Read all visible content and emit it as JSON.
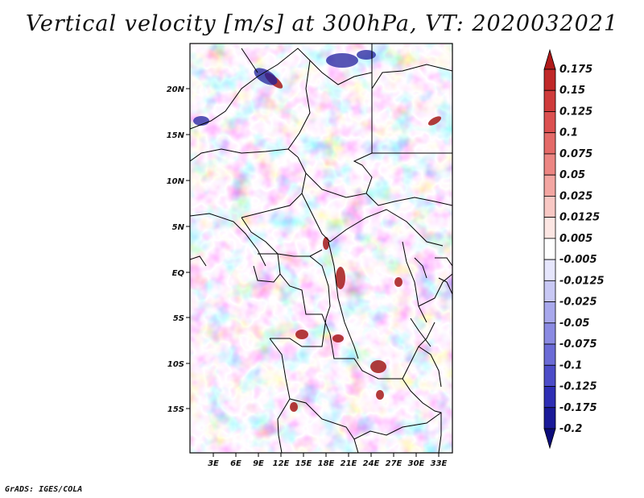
{
  "title": "Vertical velocity [m/s] at 300hPa, VT: 2020032021",
  "footer": "GrADS: IGES/COLA",
  "map": {
    "lon_ticks": [
      "3E",
      "6E",
      "9E",
      "12E",
      "15E",
      "18E",
      "21E",
      "24E",
      "27E",
      "30E",
      "33E"
    ],
    "lat_ticks": [
      "20N",
      "15N",
      "10N",
      "5N",
      "EQ",
      "5S",
      "10S",
      "15S"
    ]
  },
  "colorbar": {
    "labels": [
      "0.175",
      "0.15",
      "0.125",
      "0.1",
      "0.075",
      "0.05",
      "0.025",
      "0.0125",
      "0.005",
      "-0.005",
      "-0.0125",
      "-0.025",
      "-0.05",
      "-0.075",
      "-0.1",
      "-0.125",
      "-0.175",
      "-0.2"
    ],
    "colors": [
      "#b01a1a",
      "#c02828",
      "#cf3b3b",
      "#dc5050",
      "#e46a68",
      "#ec8683",
      "#f3a6a2",
      "#f8c8c4",
      "#fce6e3",
      "#ffffff",
      "#e6e6fc",
      "#c8c8f4",
      "#a8a8ec",
      "#8a8ae2",
      "#6b6bd6",
      "#4c4cc8",
      "#2e2eb4",
      "#1a1a98",
      "#0c0c7a"
    ]
  },
  "colors": {
    "positive": "#c92b2b",
    "negative": "#3b3bd0",
    "border": "#000000"
  }
}
